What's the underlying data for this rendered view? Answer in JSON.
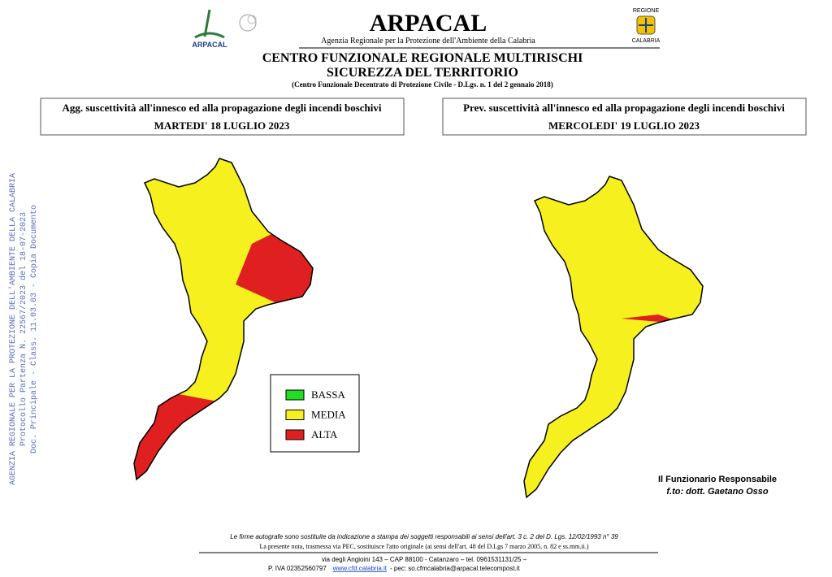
{
  "header": {
    "logo_text": "ARPACAL",
    "title": "ARPACAL",
    "subtitle": "Agenzia Regionale per la Protezione dell'Ambiente della Calabria",
    "region_top": "REGIONE",
    "region_bottom": "CALABRIA",
    "centre": "CENTRO FUNZIONALE REGIONALE MULTIRISCHI",
    "centre_sub": "SICUREZZA DEL TERRITORIO",
    "note": "(Centro Funzionale Decentrato di Protezione Civile - D.Lgs. n. 1 del 2 gennaio 2018)"
  },
  "stamp": [
    "AGENZIA REGIONALE PER LA PROTEZIONE DELL'AMBIENTE DELLA CALABRIA",
    "Protocollo Partenza N. 22567/2023 del 18-07-2023",
    "Doc. Principale - Class. 11.03.03 - Copia Documento"
  ],
  "panels": [
    {
      "heading": "Agg. suscettività all'innesco ed alla propagazione degli incendi boschivi",
      "date": "MARTEDI' 18 LUGLIO 2023"
    },
    {
      "heading": "Prev. suscettività all'innesco ed alla propagazione degli incendi boschivi",
      "date": "MERCOLEDI' 19 LUGLIO 2023"
    }
  ],
  "legend": [
    {
      "label": "BASSA",
      "color": "#22dd22"
    },
    {
      "label": "MEDIA",
      "color": "#f5f01e"
    },
    {
      "label": "ALTA",
      "color": "#e02020"
    }
  ],
  "signature": {
    "role": "Il Funzionario Responsabile",
    "name": "f.to: dott. Gaetano Osso"
  },
  "footer": {
    "line1": "Le firme autografe sono sostituite da indicazione a stampa dei soggetti responsabili ai sensi dell'art. 3 c. 2 del D. Lgs. 12/02/1993 n° 39",
    "line2": "La presente nota, trasmessa via PEC, sostituisce l'atto originale (ai sensi dell'art. 48 del D.Lgs 7 marzo 2005, n. 82 e ss.mm.ii.)",
    "address": "via degli Angioini 143 – CAP 88100 - Catanzaro – tel. 0961531131/25 –",
    "vat": "P. IVA 02352560797",
    "website": "www.cfd.calabria.it",
    "pec": "- pec: so.cfmcalabria@arpacal.telecompost.it"
  }
}
